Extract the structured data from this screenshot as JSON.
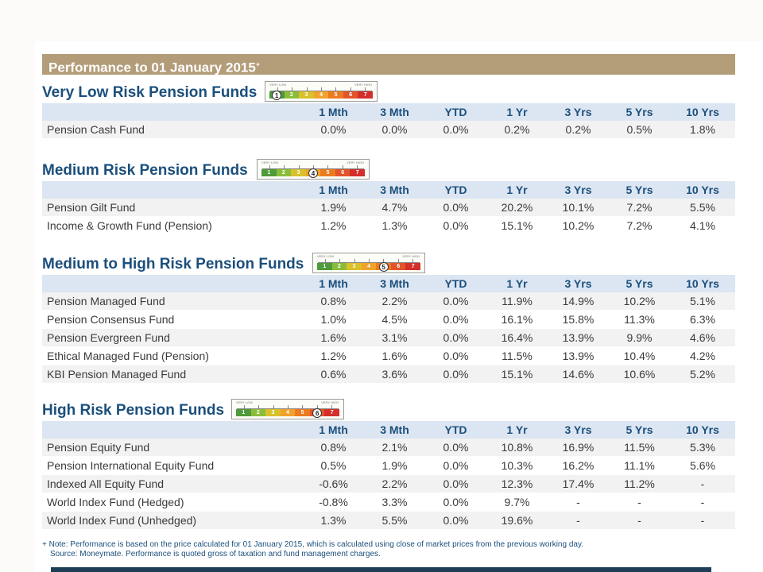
{
  "header": {
    "title": "Performance to 01 January 2015",
    "title_mark": "+"
  },
  "gauge": {
    "caption_low": "VERY LOW",
    "caption_high": "VERY HIGH",
    "colors": [
      "#4f9a3a",
      "#8cbd3a",
      "#d9c12a",
      "#f0a22a",
      "#ec7a20",
      "#e2542a",
      "#d42f2a"
    ]
  },
  "columns": [
    "",
    "1 Mth",
    "3 Mth",
    "YTD",
    "1 Yr",
    "3 Yrs",
    "5 Yrs",
    "10 Yrs"
  ],
  "sections": [
    {
      "title": "Very Low Risk Pension Funds",
      "risk": 1,
      "rows": [
        [
          "Pension Cash Fund",
          "0.0%",
          "0.0%",
          "0.0%",
          "0.2%",
          "0.2%",
          "0.5%",
          "1.8%"
        ]
      ]
    },
    {
      "title": "Medium Risk Pension Funds",
      "risk": 4,
      "rows": [
        [
          "Pension Gilt Fund",
          "1.9%",
          "4.7%",
          "0.0%",
          "20.2%",
          "10.1%",
          "7.2%",
          "5.5%"
        ],
        [
          "Income & Growth Fund (Pension)",
          "1.2%",
          "1.3%",
          "0.0%",
          "15.1%",
          "10.2%",
          "7.2%",
          "4.1%"
        ]
      ]
    },
    {
      "title": "Medium to High Risk Pension Funds",
      "risk": 5,
      "rows": [
        [
          "Pension Managed Fund",
          "0.8%",
          "2.2%",
          "0.0%",
          "11.9%",
          "14.9%",
          "10.2%",
          "5.1%"
        ],
        [
          "Pension Consensus Fund",
          "1.0%",
          "4.5%",
          "0.0%",
          "16.1%",
          "15.8%",
          "11.3%",
          "6.3%"
        ],
        [
          "Pension Evergreen Fund",
          "1.6%",
          "3.1%",
          "0.0%",
          "16.4%",
          "13.9%",
          "9.9%",
          "4.6%"
        ],
        [
          "Ethical Managed Fund (Pension)",
          "1.2%",
          "1.6%",
          "0.0%",
          "11.5%",
          "13.9%",
          "10.4%",
          "4.2%"
        ],
        [
          "KBI Pension Managed Fund",
          "0.6%",
          "3.6%",
          "0.0%",
          "15.1%",
          "14.6%",
          "10.6%",
          "5.2%"
        ]
      ]
    },
    {
      "title": "High Risk Pension Funds",
      "risk": 6,
      "rows": [
        [
          "Pension Equity Fund",
          "0.8%",
          "2.1%",
          "0.0%",
          "10.8%",
          "16.9%",
          "11.5%",
          "5.3%"
        ],
        [
          "Pension International Equity Fund",
          "0.5%",
          "1.9%",
          "0.0%",
          "10.3%",
          "16.2%",
          "11.1%",
          "5.6%"
        ],
        [
          "Indexed All Equity Fund",
          "-0.6%",
          "2.2%",
          "0.0%",
          "12.3%",
          "17.4%",
          "11.2%",
          "-"
        ],
        [
          "World Index Fund (Hedged)",
          "-0.8%",
          "3.3%",
          "0.0%",
          "9.7%",
          "-",
          "-",
          "-"
        ],
        [
          "World Index Fund (Unhedged)",
          "1.3%",
          "5.5%",
          "0.0%",
          "19.6%",
          "-",
          "-",
          "-"
        ]
      ]
    }
  ],
  "notes": {
    "line1": "+ Note: Performance is based on the price calculated for 01 January 2015, which is calculated using close of market prices from the previous working day.",
    "line2": "Source: Moneymate. Performance is quoted gross of taxation and fund management charges."
  }
}
